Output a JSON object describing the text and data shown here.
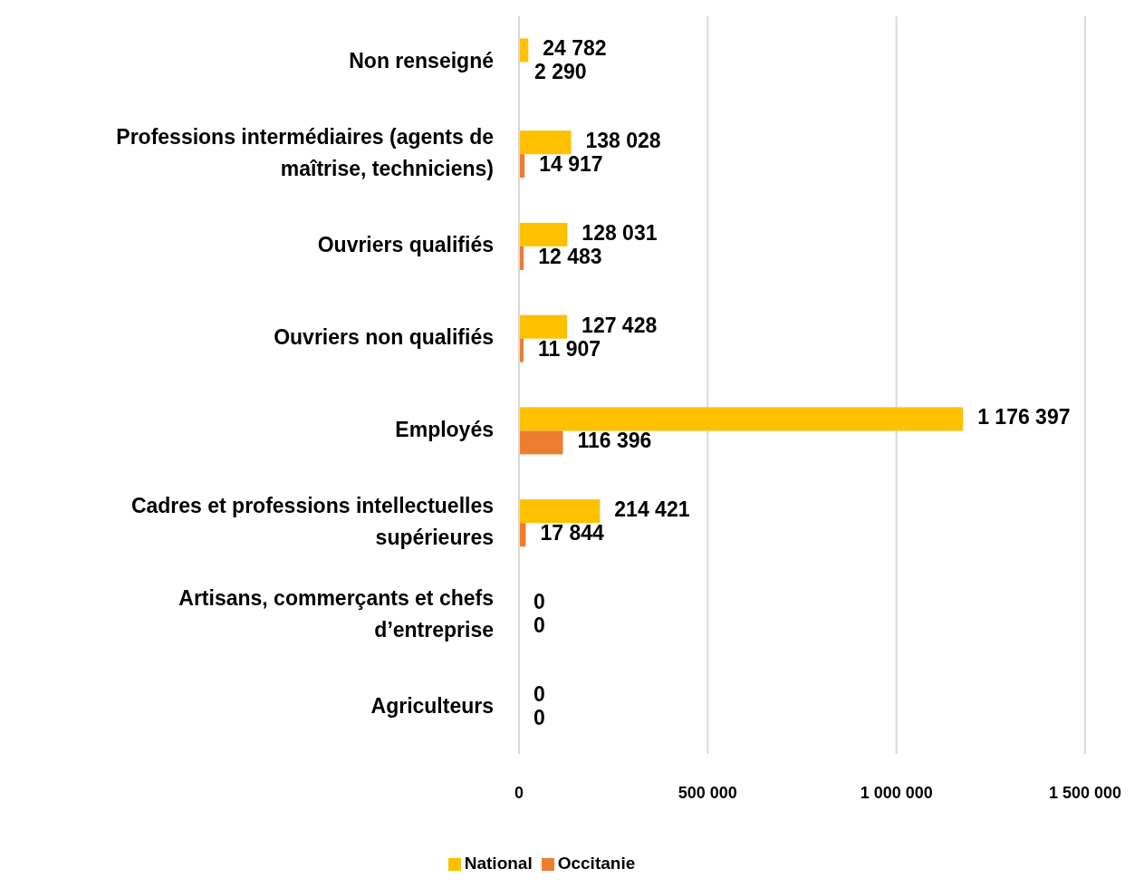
{
  "chart_data": {
    "type": "bar",
    "orientation": "horizontal",
    "categories": [
      "Non renseigné",
      "Professions intermédiaires (agents de maîtrise, techniciens)",
      "Ouvriers qualifiés",
      "Ouvriers non qualifiés",
      "Employés",
      "Cadres et professions intellectuelles supérieures",
      "Artisans, commerçants et chefs d’entreprise",
      "Agriculteurs"
    ],
    "series": [
      {
        "name": "National",
        "color": "#ffc000",
        "values": [
          24782,
          138028,
          128031,
          127428,
          1176397,
          214421,
          0,
          0
        ],
        "value_labels": [
          "24 782",
          "138 028",
          "128 031",
          "127 428",
          "1 176 397",
          "214 421",
          "0",
          "0"
        ]
      },
      {
        "name": "Occitanie",
        "color": "#ed7d31",
        "values": [
          2290,
          14917,
          12483,
          11907,
          116396,
          17844,
          0,
          0
        ],
        "value_labels": [
          "2 290",
          "14 917",
          "12 483",
          "11 907",
          "116 396",
          "17 844",
          "0",
          "0"
        ]
      }
    ],
    "xlim": [
      0,
      1500000
    ],
    "xticks": [
      {
        "value": 0,
        "label": "0"
      },
      {
        "value": 500000,
        "label": "500 000"
      },
      {
        "value": 1000000,
        "label": "1 000 000"
      },
      {
        "value": 1500000,
        "label": "1 500 000"
      }
    ],
    "grid": "x",
    "legend": "bottom"
  }
}
